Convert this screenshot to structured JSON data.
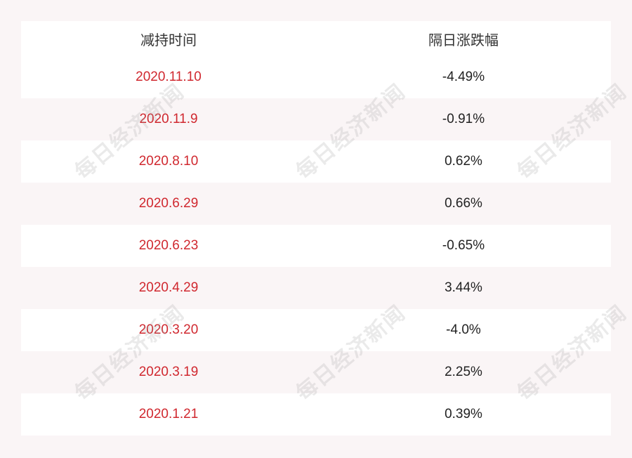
{
  "table": {
    "headers": [
      "减持时间",
      "隔日涨跌幅"
    ],
    "rows": [
      {
        "date": "2020.11.10",
        "change": "-4.49%"
      },
      {
        "date": "2020.11.9",
        "change": "-0.91%"
      },
      {
        "date": "2020.8.10",
        "change": "0.62%"
      },
      {
        "date": "2020.6.29",
        "change": "0.66%"
      },
      {
        "date": "2020.6.23",
        "change": "-0.65%"
      },
      {
        "date": "2020.4.29",
        "change": "3.44%"
      },
      {
        "date": "2020.3.20",
        "change": "-4.0%"
      },
      {
        "date": "2020.3.19",
        "change": "2.25%"
      },
      {
        "date": "2020.1.21",
        "change": "0.39%"
      }
    ]
  },
  "watermark": {
    "text": "每日经济新闻"
  },
  "colors": {
    "date_text": "#d0282f",
    "background": "#faf5f6"
  }
}
